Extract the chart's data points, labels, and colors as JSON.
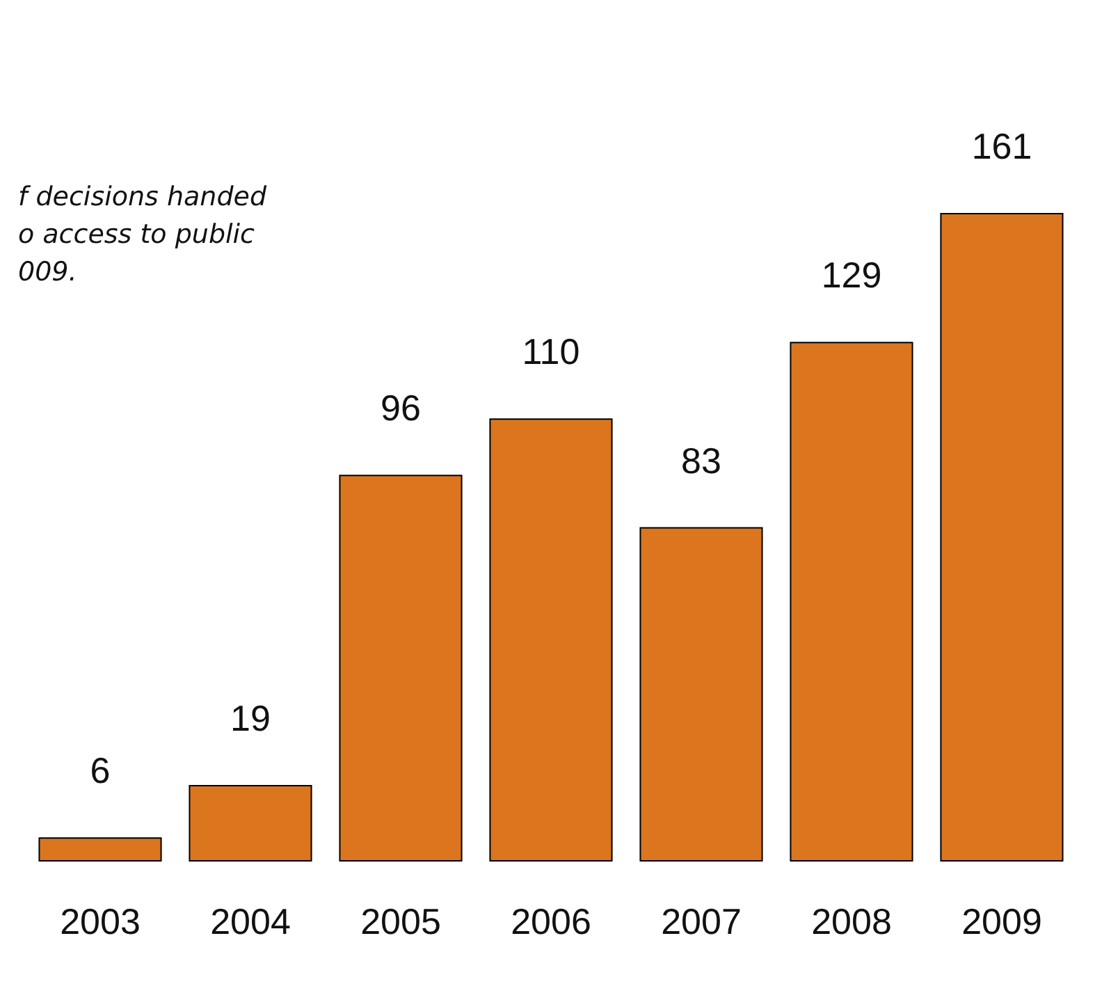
{
  "chart_data": {
    "type": "bar",
    "title": "f decisions handed\no access to public\n009.",
    "categories": [
      "2003",
      "2004",
      "2005",
      "2006",
      "2007",
      "2008",
      "2009"
    ],
    "values": [
      6,
      19,
      96,
      110,
      83,
      129,
      161
    ],
    "color": "#db761e",
    "data_labels": true
  }
}
